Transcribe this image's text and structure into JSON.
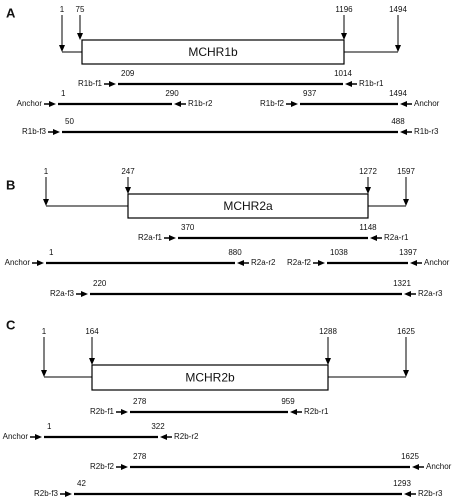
{
  "panels": [
    {
      "label": "A",
      "gene": "MCHR1b",
      "sites": [
        "1",
        "75",
        "1196",
        "1494"
      ],
      "rows": [
        {
          "left": "R1b-f1",
          "start": "209",
          "end": "1014",
          "right": "R1b-r1"
        },
        {
          "left": "Anchor",
          "start": "1",
          "end": "290",
          "right": "R1b-r2"
        },
        {
          "left": "R1b-f2",
          "start": "937",
          "end": "1494",
          "right": "Anchor"
        },
        {
          "left": "R1b-f3",
          "start": "50",
          "end": "488",
          "right": "R1b-r3"
        }
      ]
    },
    {
      "label": "B",
      "gene": "MCHR2a",
      "sites": [
        "1",
        "247",
        "1272",
        "1597"
      ],
      "rows": [
        {
          "left": "R2a-f1",
          "start": "370",
          "end": "1148",
          "right": "R2a-r1"
        },
        {
          "left": "Anchor",
          "start": "1",
          "end": "880",
          "right": "R2a-r2"
        },
        {
          "left": "R2a-f2",
          "start": "1038",
          "end": "1397",
          "right": "Anchor"
        },
        {
          "left": "R2a-f3",
          "start": "220",
          "end": "1321",
          "right": "R2a-r3"
        }
      ]
    },
    {
      "label": "C",
      "gene": "MCHR2b",
      "sites": [
        "1",
        "164",
        "1288",
        "1625"
      ],
      "rows": [
        {
          "left": "R2b-f1",
          "start": "278",
          "end": "959",
          "right": "R2b-r1"
        },
        {
          "left": "Anchor",
          "start": "1",
          "end": "322",
          "right": "R2b-r2"
        },
        {
          "left": "R2b-f2",
          "start": "278",
          "end": "1625",
          "right": "Anchor"
        },
        {
          "left": "R2b-f3",
          "start": "42",
          "end": "1293",
          "right": "R2b-r3"
        }
      ]
    }
  ]
}
